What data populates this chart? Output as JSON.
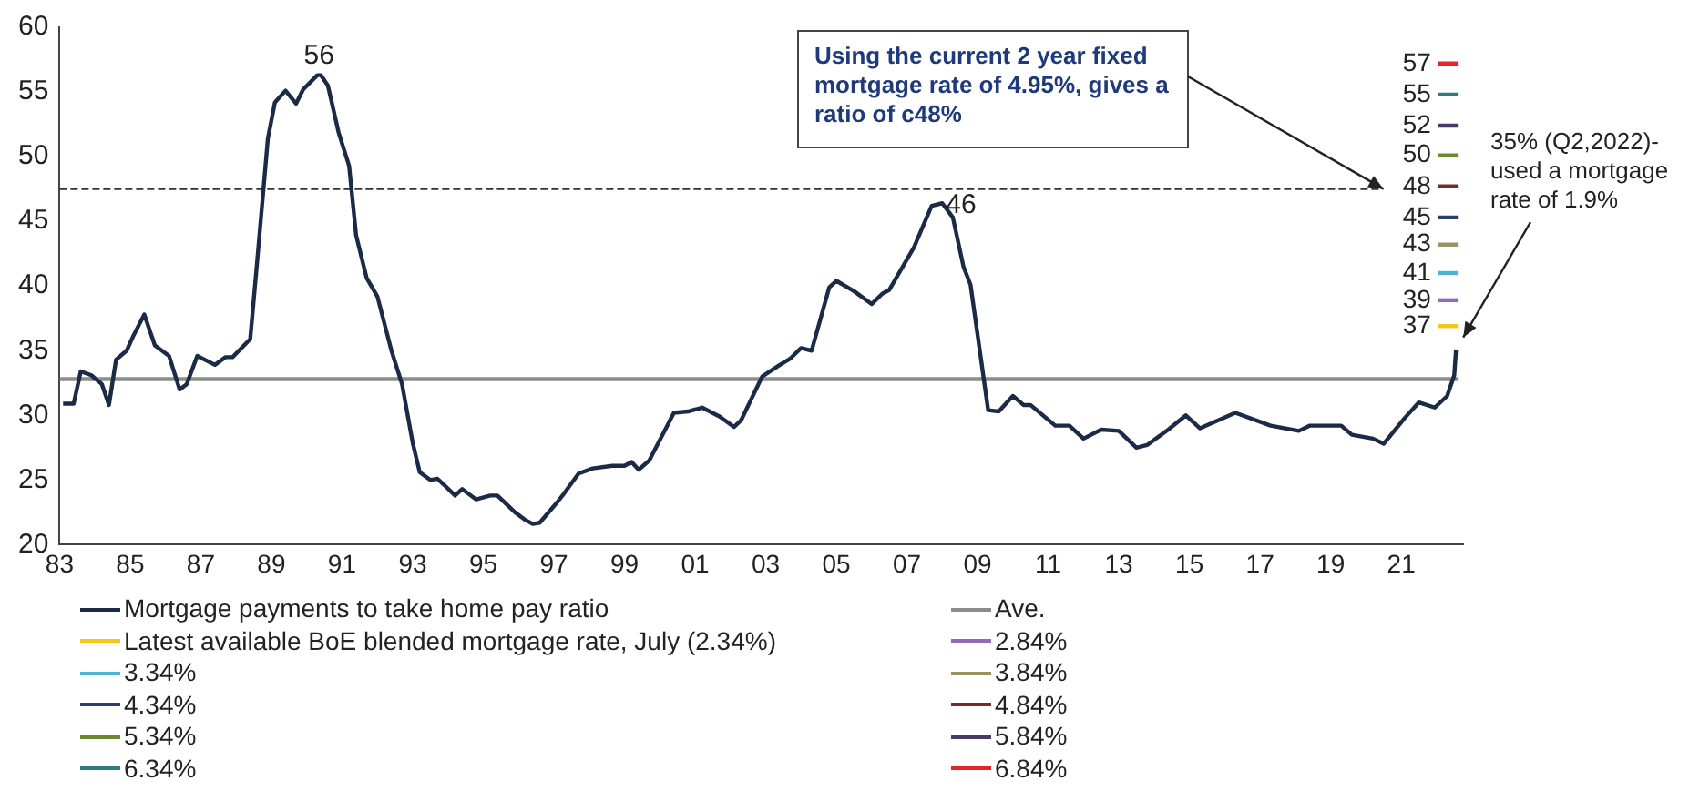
{
  "chart_data": {
    "type": "line",
    "xlim": [
      1983,
      2022.75
    ],
    "ylim": [
      20,
      60
    ],
    "xticks": [
      {
        "value": 1983,
        "label": "83"
      },
      {
        "value": 1985,
        "label": "85"
      },
      {
        "value": 1987,
        "label": "87"
      },
      {
        "value": 1989,
        "label": "89"
      },
      {
        "value": 1991,
        "label": "91"
      },
      {
        "value": 1993,
        "label": "93"
      },
      {
        "value": 1995,
        "label": "95"
      },
      {
        "value": 1997,
        "label": "97"
      },
      {
        "value": 1999,
        "label": "99"
      },
      {
        "value": 2001,
        "label": "01"
      },
      {
        "value": 2003,
        "label": "03"
      },
      {
        "value": 2005,
        "label": "05"
      },
      {
        "value": 2007,
        "label": "07"
      },
      {
        "value": 2009,
        "label": "09"
      },
      {
        "value": 2011,
        "label": "11"
      },
      {
        "value": 2013,
        "label": "13"
      },
      {
        "value": 2015,
        "label": "15"
      },
      {
        "value": 2017,
        "label": "17"
      },
      {
        "value": 2019,
        "label": "19"
      },
      {
        "value": 2021,
        "label": "21"
      }
    ],
    "yticks": [
      20,
      25,
      30,
      35,
      40,
      45,
      50,
      55,
      60
    ],
    "grid": false,
    "legend": "bottom",
    "series": [
      {
        "name": "Mortgage payments to take home pay ratio",
        "color": "#1b2a47",
        "x": [
          1983.1,
          1983.4,
          1983.6,
          1983.9,
          1984.2,
          1984.4,
          1984.6,
          1984.9,
          1985.1,
          1985.4,
          1985.7,
          1986.1,
          1986.4,
          1986.6,
          1986.9,
          1987.4,
          1987.7,
          1987.9,
          1988.4,
          1988.6,
          1988.9,
          1989.1,
          1989.4,
          1989.7,
          1989.9,
          1990.3,
          1990.4,
          1990.6,
          1990.9,
          1991.2,
          1991.4,
          1991.7,
          1992.0,
          1992.4,
          1992.7,
          1993.0,
          1993.2,
          1993.5,
          1993.7,
          1993.9,
          1994.2,
          1994.4,
          1994.8,
          1995.2,
          1995.4,
          1995.9,
          1996.2,
          1996.4,
          1996.6,
          1997.1,
          1997.3,
          1997.7,
          1998.1,
          1998.65,
          1999.0,
          1999.2,
          1999.4,
          1999.7,
          2000.4,
          2000.8,
          2001.2,
          2001.7,
          2002.1,
          2002.3,
          2002.9,
          2003.4,
          2003.7,
          2004.0,
          2004.3,
          2004.8,
          2005.0,
          2005.5,
          2006.0,
          2006.3,
          2006.5,
          2007.2,
          2007.7,
          2008.0,
          2008.3,
          2008.6,
          2008.8,
          2009.3,
          2009.6,
          2010.0,
          2010.3,
          2010.5,
          2011.2,
          2011.6,
          2012.0,
          2012.5,
          2013.0,
          2013.5,
          2013.8,
          2014.4,
          2014.9,
          2015.3,
          2016.3,
          2017.3,
          2018.1,
          2018.4,
          2019.3,
          2019.6,
          2020.2,
          2020.5,
          2021.1,
          2021.5,
          2021.95,
          2022.3,
          2022.5,
          2022.55
        ],
        "values": [
          30.9,
          30.9,
          33.4,
          33.1,
          32.4,
          30.8,
          34.3,
          35.0,
          36.2,
          37.8,
          35.4,
          34.6,
          32.0,
          32.4,
          34.6,
          33.9,
          34.5,
          34.5,
          35.9,
          42.0,
          51.4,
          54.2,
          55.1,
          54.1,
          55.2,
          56.3,
          56.3,
          55.5,
          51.9,
          49.3,
          43.9,
          40.6,
          39.2,
          35.0,
          32.4,
          27.9,
          25.6,
          25.0,
          25.1,
          24.6,
          23.8,
          24.3,
          23.5,
          23.8,
          23.8,
          22.5,
          21.9,
          21.6,
          21.7,
          23.3,
          24.0,
          25.5,
          25.9,
          26.1,
          26.1,
          26.4,
          25.8,
          26.5,
          30.2,
          30.3,
          30.6,
          29.9,
          29.1,
          29.6,
          33.0,
          33.9,
          34.4,
          35.2,
          35.0,
          39.9,
          40.4,
          39.6,
          38.6,
          39.4,
          39.7,
          43.0,
          46.2,
          46.4,
          45.3,
          41.5,
          40.1,
          30.4,
          30.3,
          31.5,
          30.8,
          30.8,
          29.2,
          29.2,
          28.2,
          28.9,
          28.8,
          27.5,
          27.7,
          28.9,
          30.0,
          29.0,
          30.2,
          29.2,
          28.8,
          29.2,
          29.2,
          28.5,
          28.2,
          27.8,
          29.8,
          31.0,
          30.6,
          31.5,
          33.1,
          35.1
        ]
      },
      {
        "name": "Ave.",
        "color": "#8c8c8c",
        "x": [
          1983,
          2022.6
        ],
        "values": [
          32.8,
          32.8
        ]
      },
      {
        "name": "Latest available BoE blended mortgage rate, July (2.34%)",
        "color": "#f5c518",
        "x": [
          2022.05,
          2022.6
        ],
        "values": [
          36.9,
          36.9
        ],
        "value_labels": [
          "37",
          null
        ]
      },
      {
        "name": "2.84%",
        "color": "#8e6bbf",
        "x": [
          2022.05,
          2022.6
        ],
        "values": [
          38.9,
          38.9
        ],
        "value_labels": [
          "39",
          null
        ]
      },
      {
        "name": "3.34%",
        "color": "#4fb3d9",
        "x": [
          2022.05,
          2022.6
        ],
        "values": [
          41,
          41
        ],
        "value_labels": [
          "41",
          null
        ]
      },
      {
        "name": "3.84%",
        "color": "#9a9060",
        "x": [
          2022.05,
          2022.6
        ],
        "values": [
          43.2,
          43.2
        ],
        "value_labels": [
          "43",
          null
        ]
      },
      {
        "name": "4.34%",
        "color": "#2b3f6b",
        "x": [
          2022.05,
          2022.6
        ],
        "values": [
          45.3,
          45.3
        ],
        "value_labels": [
          "45",
          null
        ]
      },
      {
        "name": "4.84%",
        "color": "#7a2a2a",
        "x": [
          2022.05,
          2022.6
        ],
        "values": [
          47.7,
          47.7
        ],
        "value_labels": [
          "48",
          null
        ]
      },
      {
        "name": "5.34%",
        "color": "#6b8a2a",
        "x": [
          2022.05,
          2022.6
        ],
        "values": [
          50.1,
          50.1
        ],
        "value_labels": [
          "50",
          null
        ]
      },
      {
        "name": "5.84%",
        "color": "#4a3a6a",
        "x": [
          2022.05,
          2022.6
        ],
        "values": [
          52.4,
          52.4
        ],
        "value_labels": [
          "52",
          null
        ]
      },
      {
        "name": "6.34%",
        "color": "#2e7d80",
        "x": [
          2022.05,
          2022.6
        ],
        "values": [
          54.8,
          54.8
        ],
        "value_labels": [
          "55",
          null
        ]
      },
      {
        "name": "6.84%",
        "color": "#e8232a",
        "x": [
          2022.05,
          2022.6
        ],
        "values": [
          57.2,
          57.2
        ],
        "value_labels": [
          "57",
          null
        ]
      },
      {
        "color": "#333333",
        "line_style": "dashed",
        "x": [
          1983,
          2020.4
        ],
        "values": [
          47.5,
          47.5
        ]
      }
    ],
    "annotations": [
      {
        "text": "Using the current 2 year fixed mortgage rate of 4.95%, gives a ratio of c48%",
        "x": 2020.5,
        "y": 47.5
      },
      {
        "text": "35% (Q2,2022)- used a mortgage rate of 1.9%",
        "x": 2022.6,
        "y": 35.6
      },
      {
        "text": "56",
        "x": 1990.35,
        "y": 56.3
      },
      {
        "text": "46",
        "x": 2008.0,
        "y": 46.4
      }
    ]
  }
}
